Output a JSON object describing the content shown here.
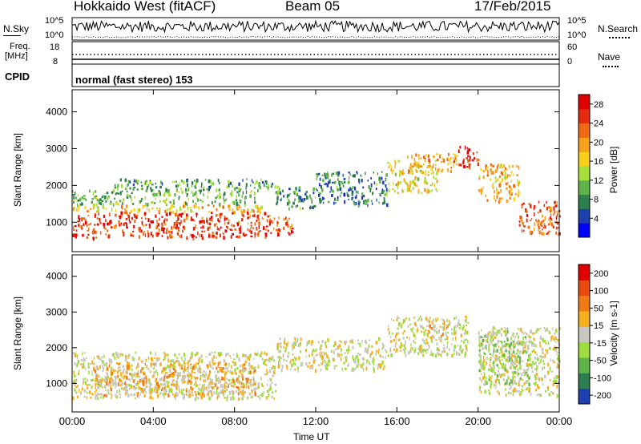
{
  "header": {
    "station": "Hokkaido West (fitACF)",
    "beam": "Beam 05",
    "date": "17/Feb/2015"
  },
  "noise_panel": {
    "left_label": "N.Sky",
    "right_label": "N.Search",
    "ytick_top": "10^5",
    "ytick_bottom": "10^0"
  },
  "freq_panel": {
    "left_label_line1": "Freq.",
    "left_label_line2": "[MHz]",
    "left_ticks": [
      "18",
      "8"
    ],
    "right_label": "Nave",
    "right_ticks": [
      "60",
      "0"
    ]
  },
  "cpid_panel": {
    "label": "CPID",
    "mode_text": "normal (fast stereo) 153"
  },
  "x_axis": {
    "ticks": [
      "00:00",
      "04:00",
      "08:00",
      "12:00",
      "16:00",
      "20:00",
      "00:00"
    ],
    "label": "Time UT"
  },
  "chart_data": [
    {
      "type": "heatmap",
      "name": "power",
      "ylabel": "Slant Range [km]",
      "yticks": [
        "1000",
        "2000",
        "3000",
        "4000"
      ],
      "ylim": [
        200,
        4600
      ],
      "xlim_hours": [
        0,
        24
      ],
      "colorbar": {
        "label": "Power [dB]",
        "ticks": [
          "4",
          "8",
          "12",
          "16",
          "20",
          "24",
          "28"
        ],
        "colors": [
          "#0000ff",
          "#1e3fb0",
          "#2e7d4f",
          "#5fb34a",
          "#a7e03a",
          "#f7d119",
          "#f7a019",
          "#f06a14",
          "#e52a10",
          "#e00000"
        ]
      },
      "regions": [
        {
          "t0": 0.0,
          "t1": 9.5,
          "r0": 600,
          "r1": 1300,
          "level": 0.88
        },
        {
          "t0": 0.0,
          "t1": 9.5,
          "r0": 1300,
          "r1": 1500,
          "level": 0.6
        },
        {
          "t0": 0.0,
          "t1": 9.0,
          "r0": 1500,
          "r1": 1900,
          "level": 0.35
        },
        {
          "t0": 2.0,
          "t1": 10.0,
          "r0": 1900,
          "r1": 2200,
          "level": 0.3
        },
        {
          "t0": 9.5,
          "t1": 11.0,
          "r0": 700,
          "r1": 1200,
          "level": 0.85
        },
        {
          "t0": 10.0,
          "t1": 12.0,
          "r0": 1400,
          "r1": 2000,
          "level": 0.25
        },
        {
          "t0": 12.0,
          "t1": 15.5,
          "r0": 1500,
          "r1": 2400,
          "level": 0.22
        },
        {
          "t0": 15.5,
          "t1": 18.0,
          "r0": 1800,
          "r1": 2700,
          "level": 0.55
        },
        {
          "t0": 16.5,
          "t1": 19.0,
          "r0": 2400,
          "r1": 2900,
          "level": 0.7
        },
        {
          "t0": 19.0,
          "t1": 20.0,
          "r0": 2500,
          "r1": 3100,
          "level": 0.9
        },
        {
          "t0": 20.0,
          "t1": 22.0,
          "r0": 1600,
          "r1": 2600,
          "level": 0.65
        },
        {
          "t0": 22.0,
          "t1": 24.0,
          "r0": 700,
          "r1": 1600,
          "level": 0.8
        }
      ]
    },
    {
      "type": "heatmap",
      "name": "velocity",
      "ylabel": "Slant Range [km]",
      "yticks": [
        "1000",
        "2000",
        "3000",
        "4000"
      ],
      "ylim": [
        200,
        4600
      ],
      "xlim_hours": [
        0,
        24
      ],
      "colorbar": {
        "label": "Velocity [m s-1]",
        "ticks": [
          "200",
          "100",
          "50",
          "15",
          "-15",
          "-50",
          "-100",
          "-200"
        ],
        "colors": [
          "#1e3fb0",
          "#2e7d4f",
          "#5fb34a",
          "#9fdc3f",
          "#c8c8c0",
          "#f5b020",
          "#f07a14",
          "#e84a10",
          "#e00000"
        ]
      },
      "regions": [
        {
          "t0": 0.0,
          "t1": 10.0,
          "r0": 600,
          "r1": 1900,
          "class": "grey"
        },
        {
          "t0": 1.0,
          "t1": 9.0,
          "r0": 700,
          "r1": 1600,
          "class": "orange"
        },
        {
          "t0": 10.0,
          "t1": 15.5,
          "r0": 1400,
          "r1": 2300,
          "class": "grey"
        },
        {
          "t0": 15.5,
          "t1": 19.5,
          "r0": 1800,
          "r1": 2900,
          "class": "grey"
        },
        {
          "t0": 17.5,
          "t1": 18.5,
          "r0": 2300,
          "r1": 2800,
          "class": "orange"
        },
        {
          "t0": 20.0,
          "t1": 24.0,
          "r0": 700,
          "r1": 2600,
          "class": "grey"
        },
        {
          "t0": 20.0,
          "t1": 22.5,
          "r0": 1000,
          "r1": 2500,
          "class": "green"
        }
      ]
    }
  ]
}
